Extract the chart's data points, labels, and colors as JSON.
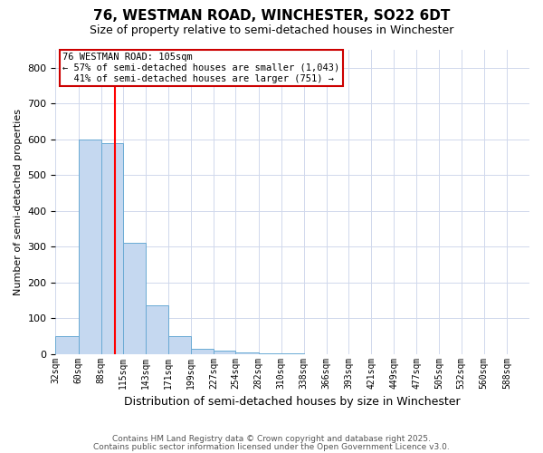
{
  "title_line1": "76, WESTMAN ROAD, WINCHESTER, SO22 6DT",
  "title_line2": "Size of property relative to semi-detached houses in Winchester",
  "xlabel": "Distribution of semi-detached houses by size in Winchester",
  "ylabel": "Number of semi-detached properties",
  "bar_color": "#c5d8f0",
  "bar_edge_color": "#6aaad4",
  "bin_edges": [
    32,
    60,
    88,
    115,
    143,
    171,
    199,
    227,
    254,
    282,
    310,
    338,
    366,
    393,
    421,
    449,
    477,
    505,
    532,
    560,
    588,
    616
  ],
  "bin_labels": [
    "32sqm",
    "60sqm",
    "88sqm",
    "115sqm",
    "143sqm",
    "171sqm",
    "199sqm",
    "227sqm",
    "254sqm",
    "282sqm",
    "310sqm",
    "338sqm",
    "366sqm",
    "393sqm",
    "421sqm",
    "449sqm",
    "477sqm",
    "505sqm",
    "532sqm",
    "560sqm",
    "588sqm"
  ],
  "bar_heights": [
    50,
    600,
    590,
    310,
    135,
    50,
    15,
    10,
    5,
    2,
    1,
    0,
    0,
    0,
    0,
    0,
    0,
    0,
    0,
    0,
    0
  ],
  "red_line_x": 105,
  "annotation_text": "76 WESTMAN ROAD: 105sqm\n← 57% of semi-detached houses are smaller (1,043)\n  41% of semi-detached houses are larger (751) →",
  "annotation_box_color": "#ffffff",
  "annotation_edge_color": "#cc0000",
  "ylim": [
    0,
    850
  ],
  "yticks": [
    0,
    100,
    200,
    300,
    400,
    500,
    600,
    700,
    800
  ],
  "footer_line1": "Contains HM Land Registry data © Crown copyright and database right 2025.",
  "footer_line2": "Contains public sector information licensed under the Open Government Licence v3.0.",
  "background_color": "#ffffff",
  "grid_color": "#d0d8ec"
}
